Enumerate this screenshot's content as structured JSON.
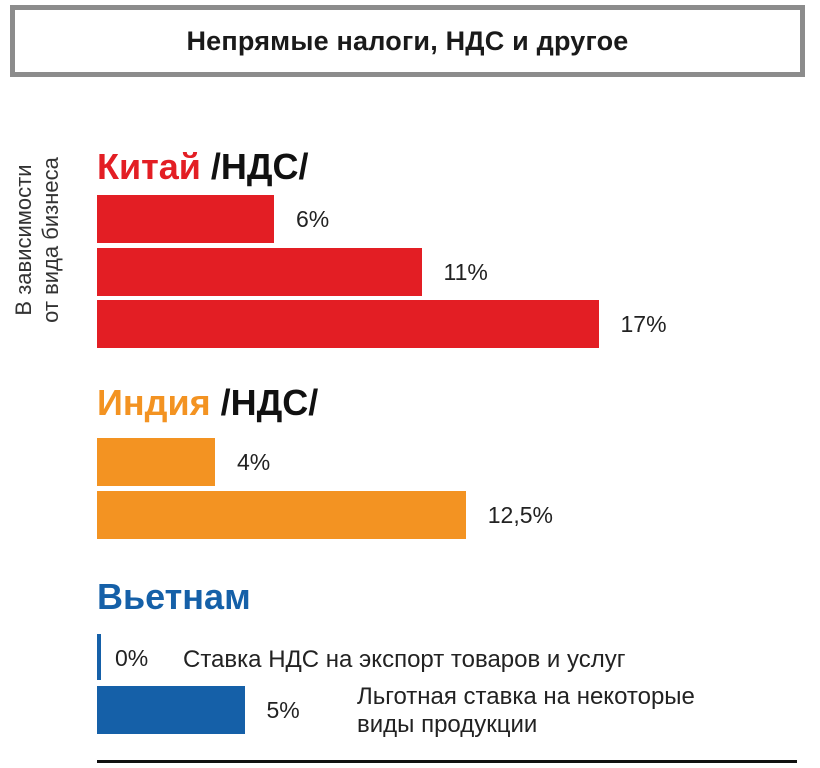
{
  "header": {
    "title": "Непрямые налоги, НДС и другое"
  },
  "side_label": {
    "line1": "В зависимости",
    "line2": "от вида бизнеса"
  },
  "colors": {
    "china": "#e31e24",
    "india": "#f39322",
    "vietnam": "#1560a8",
    "frame": "#8c8c8c"
  },
  "chart_data": [
    {
      "type": "bar",
      "title": "Китай",
      "title_suffix": "/НДС/",
      "orientation": "horizontal",
      "values": [
        6,
        11,
        17
      ],
      "value_labels": [
        "6%",
        "11%",
        "17%"
      ]
    },
    {
      "type": "bar",
      "title": "Индия",
      "title_suffix": "/НДС/",
      "orientation": "horizontal",
      "values": [
        4,
        12.5
      ],
      "value_labels": [
        "4%",
        "12,5%"
      ]
    },
    {
      "type": "bar",
      "title": "Вьетнам",
      "title_suffix": "",
      "orientation": "horizontal",
      "values": [
        0,
        5
      ],
      "value_labels": [
        "0%",
        "5%"
      ],
      "annotations": [
        "Ставка НДС на экспорт товаров и услуг",
        "Льготная ставка на некоторые",
        "виды продукции"
      ]
    }
  ]
}
